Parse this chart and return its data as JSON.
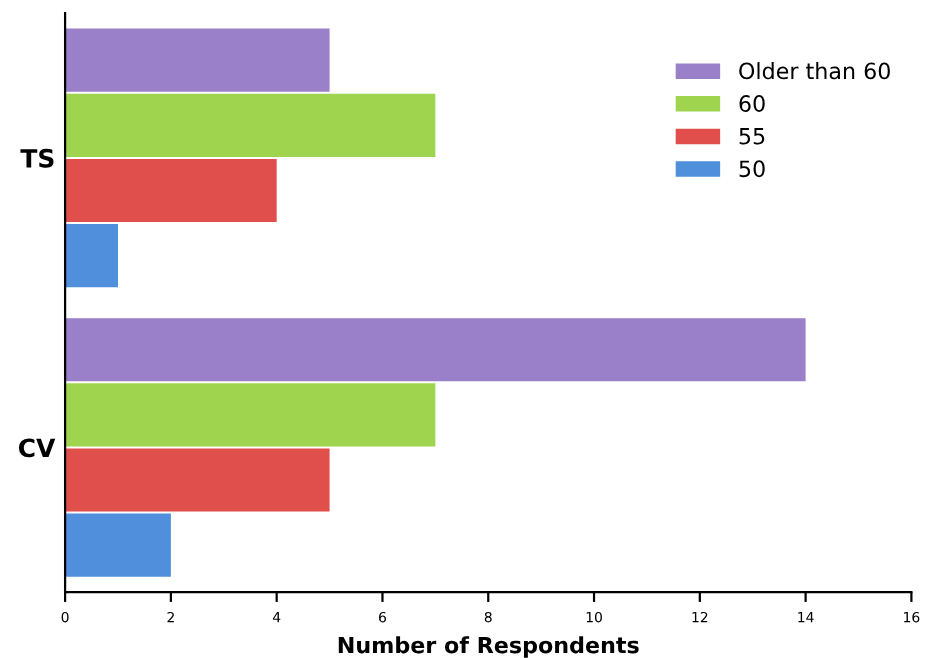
{
  "chart_data": {
    "type": "bar",
    "orientation": "horizontal",
    "categories": [
      "TS",
      "CV"
    ],
    "xlabel": "Number of Respondents",
    "series": [
      {
        "name": "50",
        "color": "#4f8fdc",
        "values": [
          1,
          2
        ]
      },
      {
        "name": "55",
        "color": "#e04f4c",
        "values": [
          4,
          5
        ]
      },
      {
        "name": "60",
        "color": "#9fd44e",
        "values": [
          7,
          7
        ]
      },
      {
        "name": "Older than 60",
        "color": "#9a7fc9",
        "values": [
          5,
          14
        ]
      }
    ],
    "xlim": [
      0,
      16
    ],
    "xticks": [
      0,
      2,
      4,
      6,
      8,
      10,
      12,
      14,
      16
    ],
    "grid": false,
    "legend": "top right"
  }
}
